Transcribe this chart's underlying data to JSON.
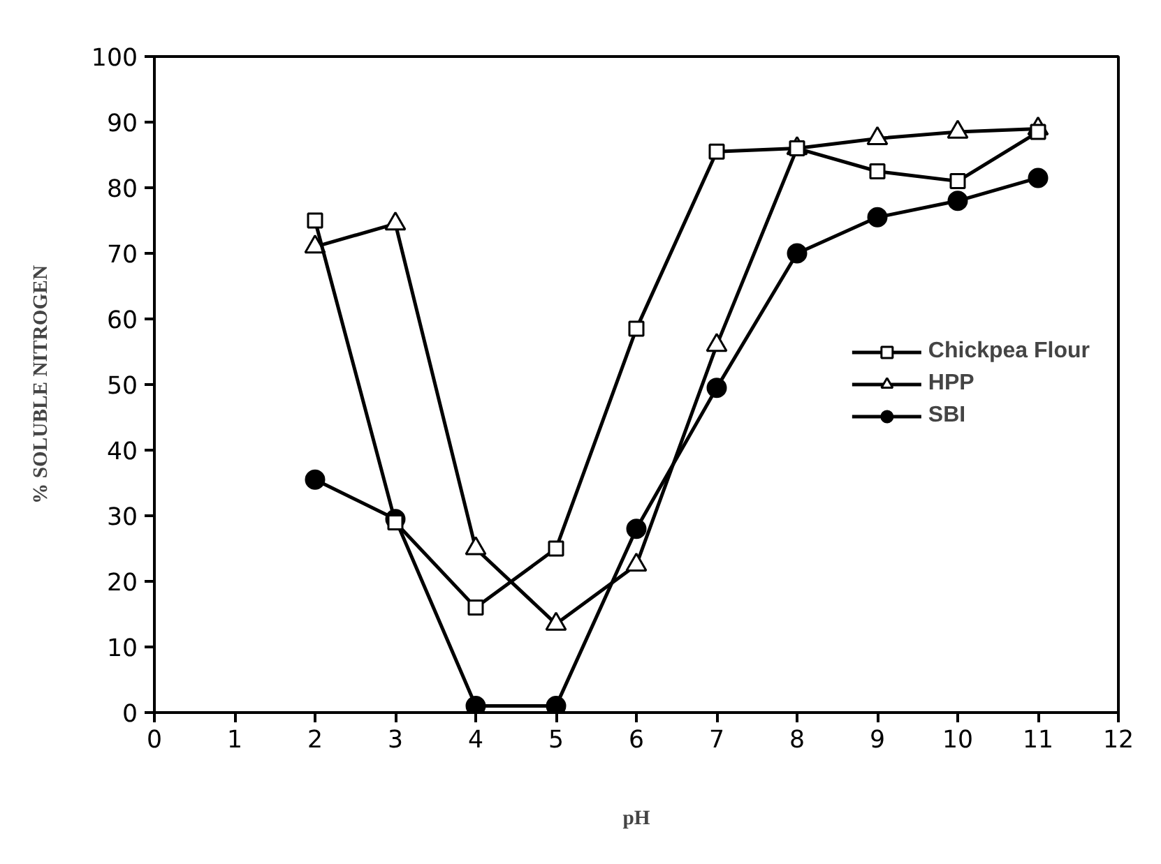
{
  "chart_data": {
    "type": "line",
    "xlabel": "pH",
    "ylabel": "% SOLUBLE NITROGEN",
    "x": [
      2,
      3,
      4,
      5,
      6,
      7,
      8,
      9,
      10,
      11
    ],
    "series": [
      {
        "name": "Chickpea Flour",
        "color": "#000000",
        "marker": "square",
        "values": [
          75,
          29,
          16,
          25,
          58.5,
          85.5,
          86,
          82.5,
          81,
          88.5
        ]
      },
      {
        "name": "HPP",
        "color": "#000000",
        "marker": "triangle",
        "values": [
          71,
          74.5,
          25,
          13.5,
          22.5,
          56,
          86,
          87.5,
          88.5,
          89
        ]
      },
      {
        "name": "SBI",
        "color": "#000000",
        "marker": "circle",
        "values": [
          35.5,
          29.5,
          1,
          1,
          28,
          49.5,
          70,
          75.5,
          78,
          81.5
        ]
      }
    ],
    "xlim": [
      0,
      12
    ],
    "ylim": [
      0,
      100
    ],
    "xticks": [
      0,
      1,
      2,
      3,
      4,
      5,
      6,
      7,
      8,
      9,
      10,
      11,
      12
    ],
    "yticks": [
      0,
      10,
      20,
      30,
      40,
      50,
      60,
      70,
      80,
      90,
      100
    ],
    "grid": false,
    "legend": "right"
  }
}
